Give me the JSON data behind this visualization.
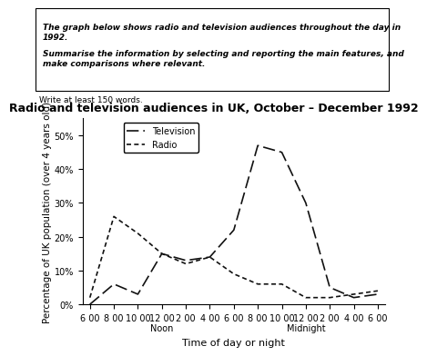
{
  "title": "Radio and television audiences in UK, October – December 1992",
  "xlabel": "Time of day or night",
  "ylabel": "Percentage of UK population (over 4 years old)",
  "prompt_text_line1": "The graph below shows radio and television audiences throughout the day in 1992.",
  "prompt_text_line2": "Summarise the information by selecting and reporting the main features, and make comparisons where relevant.",
  "write_note": "Write at least 150 words.",
  "x_tick_labels": [
    "6 00",
    "8 00",
    "10 00",
    "12 00\nNoon",
    "2 00",
    "4 00",
    "6 00",
    "8 00",
    "10 00",
    "12 00\nMidnight",
    "2 00",
    "4 00",
    "6 00"
  ],
  "ylim": [
    0,
    55
  ],
  "yticks": [
    0,
    10,
    20,
    30,
    40,
    50
  ],
  "ytick_labels": [
    "0%",
    "10%",
    "20%",
    "30%",
    "40%",
    "50%"
  ],
  "tv_x": [
    0,
    1,
    2,
    3,
    4,
    5,
    6,
    7,
    8,
    9,
    10,
    11,
    12
  ],
  "tv_y": [
    0,
    6,
    3,
    15,
    13,
    14,
    22,
    47,
    45,
    30,
    5,
    2,
    3
  ],
  "radio_x": [
    0,
    1,
    2,
    3,
    4,
    5,
    6,
    7,
    8,
    9,
    10,
    11,
    12
  ],
  "radio_y": [
    2,
    26,
    21,
    15,
    12,
    14,
    9,
    6,
    6,
    2,
    2,
    3,
    4
  ],
  "tv_color": "#111111",
  "radio_color": "#111111",
  "background_color": "#ffffff",
  "legend_tv_label": "Television",
  "legend_radio_label": "Radio",
  "title_fontsize": 10,
  "axis_fontsize": 8,
  "tick_fontsize": 7
}
